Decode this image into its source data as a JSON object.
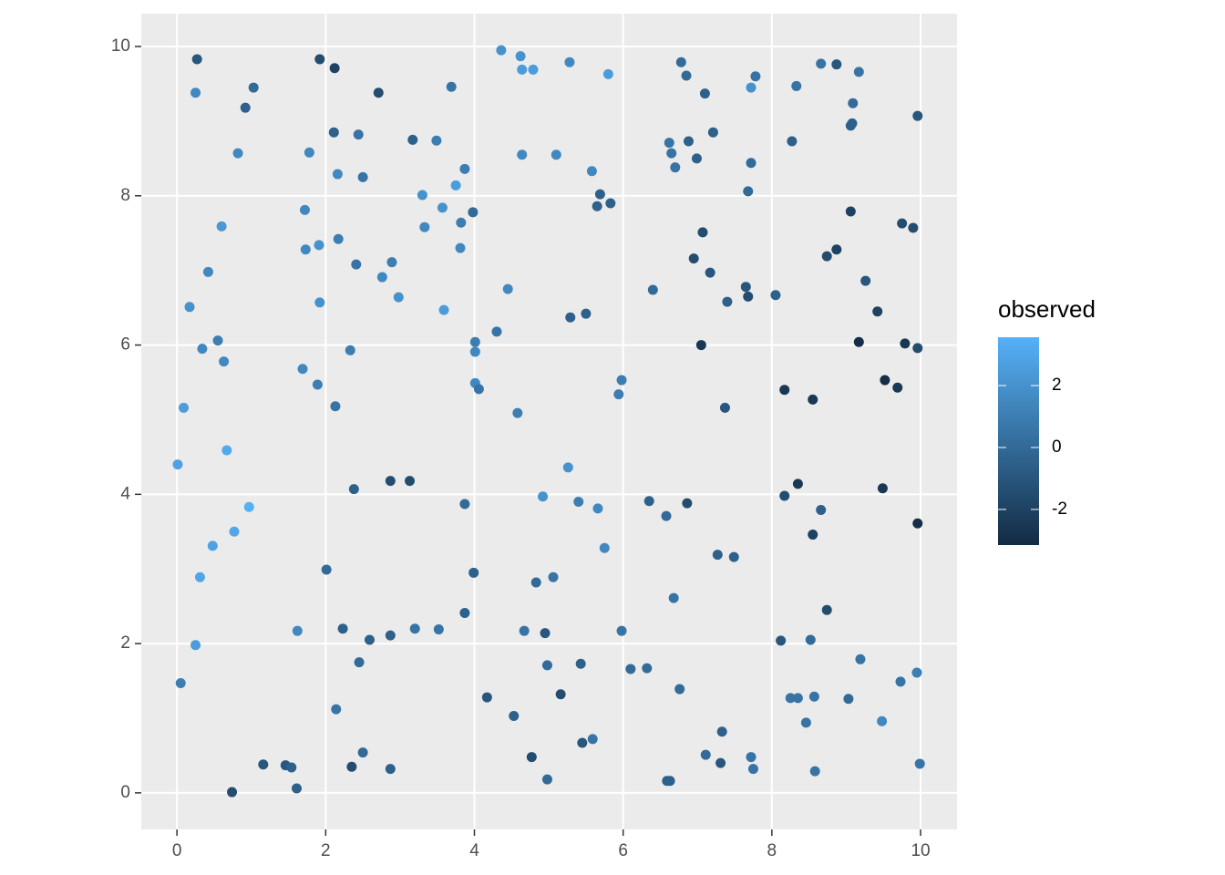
{
  "chart_data": {
    "type": "scatter",
    "color_title": "observed",
    "xlim": [
      -0.48,
      10.49
    ],
    "ylim": [
      -0.49,
      10.44
    ],
    "xticks": [
      0,
      2,
      4,
      6,
      8,
      10
    ],
    "yticks": [
      0,
      2,
      4,
      6,
      8,
      10
    ],
    "colorlim": [
      -3.15,
      3.56
    ],
    "colorticks": [
      -2,
      0,
      2
    ],
    "color_low": "#132B43",
    "color_high": "#56B1F7",
    "grid": true,
    "x": [
      0.27,
      0.25,
      1.03,
      0.92,
      0.82,
      0.6,
      0.42,
      0.17,
      0.34,
      0.55,
      0.63,
      0.09,
      0.67,
      0.01,
      0.97,
      0.77,
      0.48,
      0.31,
      0.25,
      0.05,
      0.74,
      1.16,
      1.46,
      1.54,
      1.61,
      1.62,
      1.92,
      2.12,
      1.78,
      2.11,
      2.16,
      2.44,
      2.5,
      2.71,
      1.72,
      1.73,
      1.91,
      2.17,
      2.41,
      1.92,
      1.69,
      1.89,
      2.13,
      2.33,
      2.38,
      2.87,
      3.13,
      2.01,
      2.23,
      2.59,
      2.45,
      2.14,
      2.5,
      2.35,
      2.87,
      2.87,
      3.2,
      3.52,
      3.87,
      3.99,
      3.87,
      2.76,
      2.89,
      2.98,
      3.3,
      3.33,
      3.17,
      3.49,
      3.69,
      3.57,
      3.75,
      3.87,
      3.82,
      3.98,
      3.81,
      3.59,
      4.01,
      4.01,
      4.01,
      4.06,
      4.3,
      4.45,
      4.36,
      4.62,
      4.64,
      4.79,
      4.64,
      5.1,
      5.28,
      5.8,
      5.58,
      5.69,
      5.65,
      5.83,
      5.29,
      5.5,
      4.58,
      5.98,
      5.94,
      5.26,
      4.92,
      5.4,
      5.66,
      5.75,
      4.83,
      5.06,
      4.67,
      4.95,
      4.98,
      5.43,
      4.17,
      5.16,
      4.53,
      4.77,
      4.98,
      5.45,
      5.59,
      5.98,
      6.1,
      6.32,
      6.35,
      6.58,
      6.86,
      6.68,
      6.76,
      6.4,
      6.62,
      6.65,
      6.7,
      6.88,
      6.99,
      6.78,
      6.85,
      7.1,
      7.21,
      7.07,
      6.95,
      7.17,
      7.4,
      7.05,
      7.37,
      7.27,
      7.49,
      7.11,
      7.33,
      7.31,
      6.59,
      6.63,
      7.72,
      7.75,
      7.72,
      7.78,
      7.72,
      7.68,
      7.65,
      7.68,
      8.05,
      8.33,
      8.27,
      8.66,
      8.87,
      9.17,
      9.09,
      9.08,
      9.06,
      9.96,
      9.06,
      9.75,
      9.9,
      8.87,
      8.74,
      9.26,
      9.42,
      9.17,
      9.79,
      9.96,
      9.52,
      9.69,
      8.17,
      8.55,
      8.17,
      8.35,
      8.66,
      8.55,
      9.49,
      9.96,
      8.74,
      8.12,
      8.52,
      9.19,
      9.95,
      9.73,
      8.25,
      8.35,
      8.57,
      9.03,
      8.46,
      9.48,
      8.58,
      9.99
    ],
    "y": [
      9.83,
      9.38,
      9.45,
      9.18,
      8.57,
      7.59,
      6.98,
      6.51,
      5.95,
      6.06,
      5.78,
      5.16,
      4.59,
      4.4,
      3.83,
      3.5,
      3.31,
      2.89,
      1.98,
      1.47,
      0.01,
      0.38,
      0.37,
      0.34,
      0.06,
      2.17,
      9.83,
      9.71,
      8.58,
      8.85,
      8.29,
      8.82,
      8.25,
      9.38,
      7.81,
      7.28,
      7.34,
      7.42,
      7.08,
      6.57,
      5.68,
      5.47,
      5.18,
      5.93,
      4.07,
      4.18,
      4.18,
      2.99,
      2.2,
      2.05,
      1.75,
      1.12,
      0.54,
      0.35,
      0.32,
      2.11,
      2.2,
      2.19,
      2.41,
      2.95,
      3.87,
      6.91,
      7.11,
      6.64,
      8.01,
      7.58,
      8.75,
      8.74,
      9.46,
      7.84,
      8.14,
      8.36,
      7.64,
      7.78,
      7.3,
      6.47,
      6.04,
      5.91,
      5.49,
      5.41,
      6.18,
      6.75,
      9.95,
      9.87,
      9.69,
      9.69,
      8.55,
      8.55,
      9.79,
      9.63,
      8.33,
      8.02,
      7.86,
      7.9,
      6.37,
      6.42,
      5.09,
      5.53,
      5.34,
      4.36,
      3.97,
      3.9,
      3.81,
      3.28,
      2.82,
      2.89,
      2.17,
      2.14,
      1.71,
      1.73,
      1.28,
      1.32,
      1.03,
      0.48,
      0.18,
      0.67,
      0.72,
      2.17,
      1.66,
      1.67,
      3.91,
      3.71,
      3.88,
      2.61,
      1.39,
      6.74,
      8.71,
      8.57,
      8.38,
      8.73,
      8.5,
      9.79,
      9.61,
      9.37,
      8.85,
      7.51,
      7.16,
      6.97,
      6.58,
      6.0,
      5.16,
      3.19,
      3.16,
      0.51,
      0.82,
      0.4,
      0.16,
      0.16,
      0.48,
      0.32,
      9.45,
      9.6,
      8.44,
      8.06,
      6.78,
      6.65,
      6.67,
      9.47,
      8.73,
      9.77,
      9.76,
      9.66,
      9.24,
      8.97,
      8.94,
      9.07,
      7.79,
      7.63,
      7.57,
      7.28,
      7.19,
      6.86,
      6.45,
      6.04,
      6.02,
      5.96,
      5.53,
      5.43,
      5.4,
      5.27,
      3.98,
      4.14,
      3.79,
      3.46,
      4.08,
      3.61,
      2.45,
      2.04,
      2.05,
      1.79,
      1.61,
      1.49,
      1.27,
      1.27,
      1.29,
      1.26,
      0.94,
      0.96,
      0.29,
      0.39
    ],
    "color_values": [
      -1,
      1.5,
      0,
      -0.5,
      1.5,
      2.3,
      1.5,
      2,
      1.5,
      1,
      1.5,
      2.5,
      3.2,
      2.8,
      3.5,
      3,
      2.8,
      3,
      2.5,
      1,
      -1.5,
      -1,
      -1,
      -0.5,
      -0.5,
      1.5,
      -1.5,
      -2,
      1.5,
      -0.5,
      1.5,
      0.5,
      0.5,
      -1.5,
      1.5,
      1.5,
      2,
      1,
      0.5,
      2,
      1.5,
      1,
      0.5,
      1,
      -0.5,
      -1.5,
      -1.5,
      0,
      -0.5,
      -0.5,
      0,
      0.5,
      0,
      -1.5,
      -0.5,
      -0.5,
      0.5,
      0.5,
      -0.5,
      -0.5,
      0,
      1.5,
      1,
      2,
      2,
      1.5,
      -0.5,
      1,
      0.5,
      2,
      2.5,
      1,
      1,
      0,
      1.5,
      2.5,
      1,
      1.5,
      1.5,
      0.5,
      0.5,
      1.5,
      2,
      2,
      2.5,
      2.5,
      1.5,
      1.5,
      1.5,
      2.5,
      1.5,
      -0.5,
      -0.5,
      -0.5,
      -0.5,
      -0.5,
      1,
      1,
      1,
      2,
      2,
      1,
      1.5,
      1.5,
      0,
      0.5,
      0.5,
      -1,
      0,
      -0.5,
      -1,
      -1.5,
      -0.5,
      -1.5,
      0,
      -1,
      0.5,
      0.5,
      0,
      0,
      -0.5,
      0,
      -1.5,
      0.5,
      0,
      0,
      0.5,
      0.5,
      0.5,
      -0.5,
      -0.5,
      0,
      0,
      -0.5,
      -0.5,
      -1.5,
      -1.5,
      -1,
      -0.5,
      -2.5,
      -1,
      -0.5,
      -0.5,
      0,
      -0.5,
      -1,
      -0.5,
      -0.5,
      0.5,
      0.5,
      2,
      0.5,
      0,
      0,
      -1,
      -1.5,
      -0.5,
      0.5,
      -0.5,
      0.5,
      -1,
      0.5,
      0,
      -0.5,
      -0.5,
      -1,
      -2,
      -1.5,
      -1.5,
      -2,
      -1.5,
      -1,
      -2,
      -3,
      -2.5,
      -1.5,
      -3,
      -2.5,
      -2.5,
      -2.5,
      -1.5,
      -2.5,
      -0.5,
      -2,
      -2.5,
      -3,
      -1.5,
      -1,
      0,
      0.5,
      1,
      0.5,
      0.5,
      0.5,
      0.5,
      0,
      0.5,
      1.5,
      0.5,
      0.5
    ]
  }
}
